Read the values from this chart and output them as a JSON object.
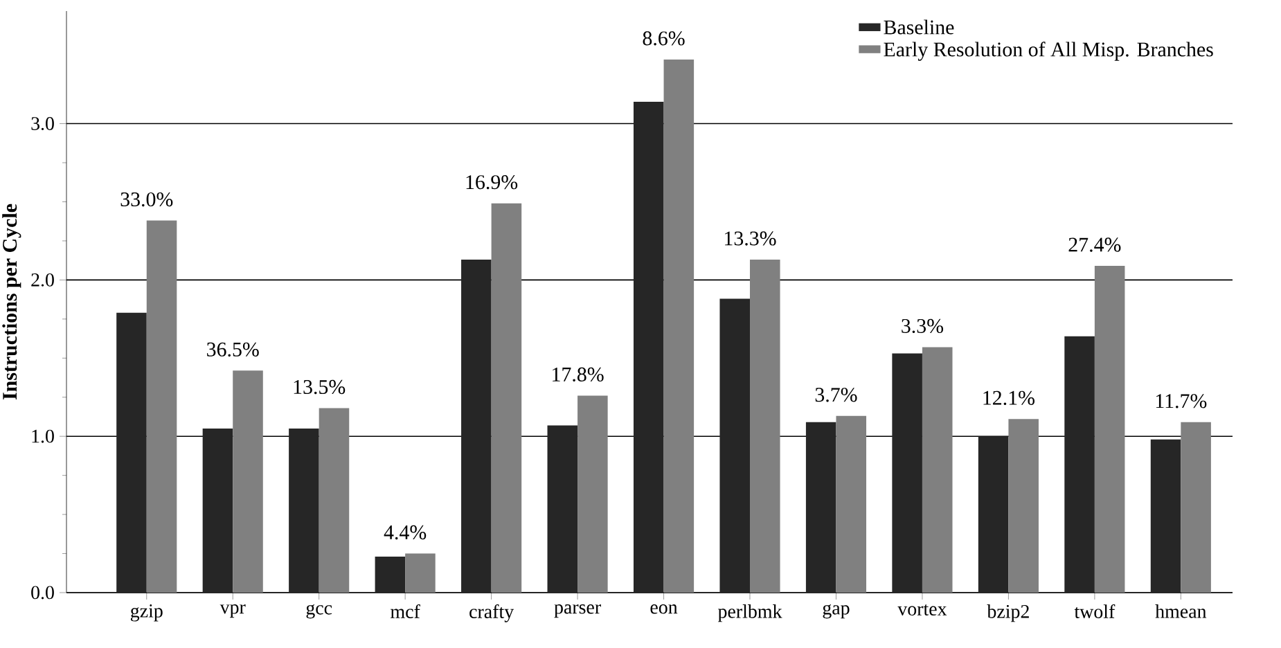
{
  "chart_data": {
    "type": "bar",
    "ylabel": "Instructions per Cycle",
    "categories": [
      "gzip",
      "vpr",
      "gcc",
      "mcf",
      "crafty",
      "parser",
      "eon",
      "perlbmk",
      "gap",
      "vortex",
      "bzip2",
      "twolf",
      "hmean"
    ],
    "series": [
      {
        "name": "Baseline",
        "color": "#262626",
        "values": [
          1.79,
          1.05,
          1.05,
          0.23,
          2.13,
          1.07,
          3.14,
          1.88,
          1.09,
          1.53,
          1.0,
          1.64,
          0.98
        ]
      },
      {
        "name": "Early Resolution of All Misp. Branches",
        "color": "#808080",
        "values": [
          2.38,
          1.42,
          1.18,
          0.25,
          2.49,
          1.26,
          3.41,
          2.13,
          1.13,
          1.57,
          1.11,
          2.09,
          1.09
        ]
      }
    ],
    "annotations": [
      {
        "text": "33.0%",
        "x": "gzip",
        "y": 2.38
      },
      {
        "text": "36.5%",
        "x": "vpr",
        "y": 1.42
      },
      {
        "text": "13.5%",
        "x": "gcc",
        "y": 1.18
      },
      {
        "text": "4.4%",
        "x": "mcf",
        "y": 0.25
      },
      {
        "text": "16.9%",
        "x": "crafty",
        "y": 2.49
      },
      {
        "text": "17.8%",
        "x": "parser",
        "y": 1.26
      },
      {
        "text": "8.6%",
        "x": "eon",
        "y": 3.41
      },
      {
        "text": "13.3%",
        "x": "perlbmk",
        "y": 2.13
      },
      {
        "text": "3.7%",
        "x": "gap",
        "y": 1.13
      },
      {
        "text": "3.3%",
        "x": "vortex",
        "y": 1.57
      },
      {
        "text": "12.1%",
        "x": "bzip2",
        "y": 1.11
      },
      {
        "text": "27.4%",
        "x": "twolf",
        "y": 2.09
      },
      {
        "text": "11.7%",
        "x": "hmean",
        "y": 1.09
      }
    ],
    "ylim": [
      0,
      3.72
    ],
    "yticks": [
      {
        "value": 0,
        "label": "0.0"
      },
      {
        "value": 1,
        "label": "1.0"
      },
      {
        "value": 2,
        "label": "2.0"
      },
      {
        "value": 3,
        "label": "3.0"
      }
    ],
    "grid": "y",
    "legend": "top right"
  }
}
